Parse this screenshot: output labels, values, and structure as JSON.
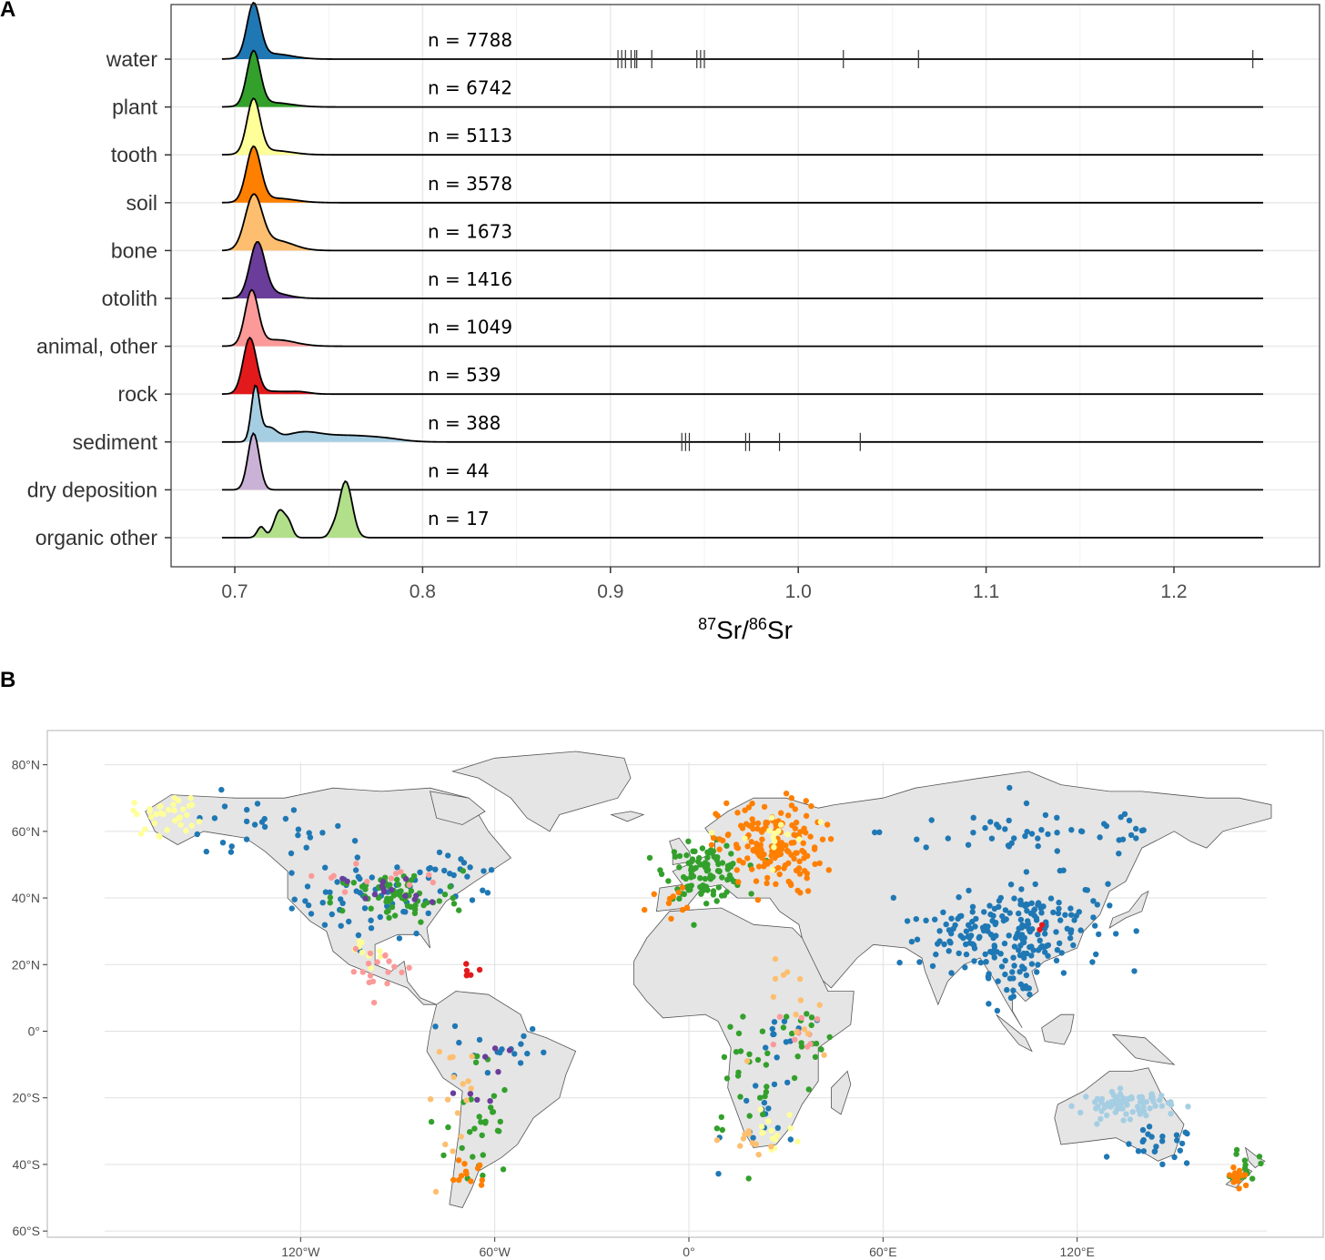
{
  "chart_data": [
    {
      "panel": "A",
      "type": "area",
      "subtype": "ridgeline-density",
      "xlabel_main": "Sr/",
      "xlabel_sup1": "87",
      "xlabel_sup2": "86",
      "xlabel_tail": "Sr",
      "xlim": [
        0.69,
        1.25
      ],
      "xticks": [
        0.7,
        0.8,
        0.9,
        1.0,
        1.1,
        1.2
      ],
      "xtick_labels": [
        "0.7",
        "0.8",
        "0.9",
        "1.0",
        "1.1",
        "1.2"
      ],
      "grid": true,
      "series": [
        {
          "name": "water",
          "n_label": "n = 7788",
          "color": "#1f78b4",
          "peaks": [
            [
              0.71,
              0.0035,
              1.0
            ],
            [
              0.72,
              0.01,
              0.1
            ]
          ],
          "rug": [
            0.904,
            0.906,
            0.908,
            0.911,
            0.913,
            0.914,
            0.922,
            0.946,
            0.948,
            0.95,
            1.024,
            1.064,
            1.242
          ]
        },
        {
          "name": "plant",
          "n_label": "n = 6742",
          "color": "#33a02c",
          "peaks": [
            [
              0.71,
              0.0035,
              1.0
            ],
            [
              0.72,
              0.01,
              0.08
            ]
          ],
          "rug": []
        },
        {
          "name": "tooth",
          "n_label": "n = 5113",
          "color": "#ffff99",
          "peaks": [
            [
              0.71,
              0.0035,
              1.0
            ],
            [
              0.72,
              0.01,
              0.08
            ]
          ],
          "rug": []
        },
        {
          "name": "soil",
          "n_label": "n = 3578",
          "color": "#ff7f00",
          "peaks": [
            [
              0.71,
              0.0038,
              1.0
            ],
            [
              0.722,
              0.01,
              0.08
            ]
          ],
          "rug": []
        },
        {
          "name": "bone",
          "n_label": "n = 1673",
          "color": "#fdbf6f",
          "peaks": [
            [
              0.71,
              0.0045,
              0.95
            ],
            [
              0.722,
              0.009,
              0.18
            ]
          ],
          "rug": []
        },
        {
          "name": "otolith",
          "n_label": "n = 1416",
          "color": "#6a3d9a",
          "peaks": [
            [
              0.712,
              0.004,
              1.0
            ],
            [
              0.72,
              0.008,
              0.1
            ]
          ],
          "rug": []
        },
        {
          "name": "animal, other",
          "n_label": "n = 1049",
          "color": "#fb9a99",
          "peaks": [
            [
              0.709,
              0.0035,
              1.0
            ],
            [
              0.722,
              0.01,
              0.12
            ]
          ],
          "rug": []
        },
        {
          "name": "rock",
          "n_label": "n = 539",
          "color": "#e31a1c",
          "peaks": [
            [
              0.708,
              0.0035,
              1.0
            ],
            [
              0.72,
              0.01,
              0.05
            ],
            [
              0.735,
              0.005,
              0.03
            ]
          ],
          "rug": []
        },
        {
          "name": "sediment",
          "n_label": "n = 388",
          "color": "#a6cee3",
          "peaks": [
            [
              0.711,
              0.0022,
              0.92
            ],
            [
              0.718,
              0.004,
              0.22
            ],
            [
              0.736,
              0.01,
              0.16
            ],
            [
              0.76,
              0.012,
              0.1
            ],
            [
              0.78,
              0.01,
              0.05
            ]
          ],
          "rug": [
            0.938,
            0.94,
            0.942,
            0.972,
            0.974,
            0.99,
            1.033
          ]
        },
        {
          "name": "dry deposition",
          "n_label": "n = 44",
          "color": "#cab2d6",
          "peaks": [
            [
              0.71,
              0.003,
              1.0
            ]
          ],
          "rug": []
        },
        {
          "name": "organic other",
          "n_label": "n = 17",
          "color": "#b2df8a",
          "peaks": [
            [
              0.714,
              0.002,
              0.12
            ],
            [
              0.724,
              0.003,
              0.3
            ],
            [
              0.729,
              0.002,
              0.12
            ],
            [
              0.759,
              0.0035,
              0.62
            ],
            [
              0.752,
              0.002,
              0.06
            ]
          ],
          "rug": []
        }
      ]
    },
    {
      "panel": "B",
      "type": "scatter",
      "subtype": "world-map",
      "xlim": [
        -180,
        180
      ],
      "ylim": [
        -62,
        85
      ],
      "xticks": [
        -120,
        -60,
        0,
        60,
        120
      ],
      "xtick_labels": [
        "120°W",
        "60°W",
        "0°",
        "60°E",
        "120°E"
      ],
      "yticks": [
        80,
        60,
        40,
        20,
        0,
        -20,
        -40,
        -60
      ],
      "ytick_labels": [
        "80°N",
        "60°N",
        "40°N",
        "20°N",
        "0°",
        "20°S",
        "40°S",
        "60°S"
      ],
      "grid": true,
      "land_color": "#e5e5e5",
      "clusters": [
        {
          "color": "#1f78b4",
          "lon": -98,
          "lat": 40,
          "sx": 12,
          "sy": 6,
          "count": 60
        },
        {
          "color": "#1f78b4",
          "lon": -135,
          "lat": 60,
          "sx": 15,
          "sy": 5,
          "count": 28
        },
        {
          "color": "#1f78b4",
          "lon": -70,
          "lat": 45,
          "sx": 6,
          "sy": 4,
          "count": 20
        },
        {
          "color": "#1f78b4",
          "lon": -60,
          "lat": -5,
          "sx": 8,
          "sy": 6,
          "count": 18
        },
        {
          "color": "#1f78b4",
          "lon": 105,
          "lat": 32,
          "sx": 12,
          "sy": 7,
          "count": 150
        },
        {
          "color": "#1f78b4",
          "lon": 85,
          "lat": 28,
          "sx": 10,
          "sy": 4,
          "count": 55
        },
        {
          "color": "#1f78b4",
          "lon": 110,
          "lat": 60,
          "sx": 25,
          "sy": 4,
          "count": 50
        },
        {
          "color": "#1f78b4",
          "lon": 100,
          "lat": 15,
          "sx": 5,
          "sy": 6,
          "count": 30
        },
        {
          "color": "#1f78b4",
          "lon": 145,
          "lat": -35,
          "sx": 6,
          "sy": 3,
          "count": 24
        },
        {
          "color": "#1f78b4",
          "lon": 25,
          "lat": -25,
          "sx": 7,
          "sy": 7,
          "count": 16
        },
        {
          "color": "#1f78b4",
          "lon": 30,
          "lat": 0,
          "sx": 4,
          "sy": 5,
          "count": 10
        },
        {
          "color": "#33a02c",
          "lon": 5,
          "lat": 48,
          "sx": 6,
          "sy": 4,
          "count": 110
        },
        {
          "color": "#33a02c",
          "lon": -90,
          "lat": 40,
          "sx": 10,
          "sy": 4,
          "count": 70
        },
        {
          "color": "#33a02c",
          "lon": 20,
          "lat": -10,
          "sx": 8,
          "sy": 12,
          "count": 30
        },
        {
          "color": "#33a02c",
          "lon": -65,
          "lat": -30,
          "sx": 5,
          "sy": 12,
          "count": 30
        },
        {
          "color": "#33a02c",
          "lon": 172,
          "lat": -40,
          "sx": 2,
          "sy": 3,
          "count": 16
        },
        {
          "color": "#33a02c",
          "lon": 38,
          "lat": 0,
          "sx": 3,
          "sy": 4,
          "count": 14
        },
        {
          "color": "#ff7f00",
          "lon": 25,
          "lat": 55,
          "sx": 8,
          "sy": 7,
          "count": 160
        },
        {
          "color": "#ff7f00",
          "lon": 170,
          "lat": -44,
          "sx": 2,
          "sy": 2,
          "count": 16
        },
        {
          "color": "#ff7f00",
          "lon": -68,
          "lat": -42,
          "sx": 3,
          "sy": 3,
          "count": 12
        },
        {
          "color": "#ff7f00",
          "lon": -7,
          "lat": 39,
          "sx": 3,
          "sy": 2,
          "count": 10
        },
        {
          "color": "#ffff99",
          "lon": -160,
          "lat": 65,
          "sx": 6,
          "sy": 3,
          "count": 34
        },
        {
          "color": "#ffff99",
          "lon": 25,
          "lat": -30,
          "sx": 4,
          "sy": 3,
          "count": 14
        },
        {
          "color": "#ffff99",
          "lon": 25,
          "lat": 58,
          "sx": 6,
          "sy": 4,
          "count": 14
        },
        {
          "color": "#ffff99",
          "lon": -100,
          "lat": 25,
          "sx": 5,
          "sy": 3,
          "count": 10
        },
        {
          "color": "#fb9a99",
          "lon": -95,
          "lat": 18,
          "sx": 5,
          "sy": 3,
          "count": 18
        },
        {
          "color": "#fb9a99",
          "lon": -100,
          "lat": 47,
          "sx": 12,
          "sy": 2,
          "count": 12
        },
        {
          "color": "#fb9a99",
          "lon": 35,
          "lat": -2,
          "sx": 4,
          "sy": 4,
          "count": 10
        },
        {
          "color": "#fdbf6f",
          "lon": -70,
          "lat": -20,
          "sx": 6,
          "sy": 10,
          "count": 16
        },
        {
          "color": "#fdbf6f",
          "lon": 35,
          "lat": 5,
          "sx": 6,
          "sy": 8,
          "count": 14
        },
        {
          "color": "#fdbf6f",
          "lon": 20,
          "lat": -33,
          "sx": 3,
          "sy": 2,
          "count": 10
        },
        {
          "color": "#6a3d9a",
          "lon": -95,
          "lat": 42,
          "sx": 6,
          "sy": 3,
          "count": 14
        },
        {
          "color": "#6a3d9a",
          "lon": -60,
          "lat": -10,
          "sx": 6,
          "sy": 5,
          "count": 8
        },
        {
          "color": "#e31a1c",
          "lon": -68,
          "lat": 18,
          "sx": 2,
          "sy": 1,
          "count": 5
        },
        {
          "color": "#e31a1c",
          "lon": 108,
          "lat": 32,
          "sx": 1,
          "sy": 1,
          "count": 2
        },
        {
          "color": "#a6cee3",
          "lon": 135,
          "lat": -22,
          "sx": 7,
          "sy": 2,
          "count": 80
        }
      ]
    }
  ],
  "labels": {
    "panel_a": "A",
    "panel_b": "B"
  }
}
